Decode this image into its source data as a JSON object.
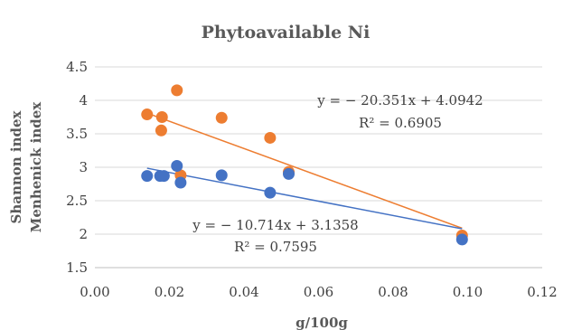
{
  "chart_data": {
    "type": "scatter",
    "title": "Phytoavailable Ni",
    "xlabel": "g/100g",
    "ylabel_lines": [
      "Shannon index",
      "Menhenick index"
    ],
    "xlim": [
      0.0,
      0.12
    ],
    "ylim": [
      1.5,
      4.5
    ],
    "x_ticks": [
      "0.00",
      "0.02",
      "0.04",
      "0.06",
      "0.08",
      "0.10",
      "0.12"
    ],
    "y_ticks": [
      "1.5",
      "2",
      "2.5",
      "3",
      "3.5",
      "4",
      "4.5"
    ],
    "grid": "horizontal",
    "colors": {
      "orange": "#ED7D31",
      "blue": "#4472C4",
      "grid": "#D9D9D9",
      "axis": "#BFBFBF",
      "text": "#595959"
    },
    "series": [
      {
        "color": "#ED7D31",
        "points": [
          [
            0.014,
            3.79
          ],
          [
            0.018,
            3.75
          ],
          [
            0.0178,
            3.55
          ],
          [
            0.022,
            4.15
          ],
          [
            0.023,
            2.88
          ],
          [
            0.034,
            3.74
          ],
          [
            0.047,
            3.44
          ],
          [
            0.052,
            2.93
          ],
          [
            0.0985,
            1.98
          ]
        ],
        "trendline": {
          "slope": -20.351,
          "intercept": 4.0942,
          "x_range": [
            0.014,
            0.0985
          ]
        },
        "equation": "y = − 20.351x + 4.0942",
        "r2": "R² = 0.6905"
      },
      {
        "color": "#4472C4",
        "points": [
          [
            0.014,
            2.87
          ],
          [
            0.0175,
            2.87
          ],
          [
            0.0185,
            2.87
          ],
          [
            0.022,
            3.02
          ],
          [
            0.023,
            2.77
          ],
          [
            0.034,
            2.88
          ],
          [
            0.047,
            2.62
          ],
          [
            0.052,
            2.9
          ],
          [
            0.0985,
            1.92
          ]
        ],
        "trendline": {
          "slope": -10.714,
          "intercept": 3.1358,
          "x_range": [
            0.014,
            0.0985
          ]
        },
        "equation": "y = − 10.714x + 3.1358",
        "r2": "R² = 0.7595"
      }
    ]
  }
}
